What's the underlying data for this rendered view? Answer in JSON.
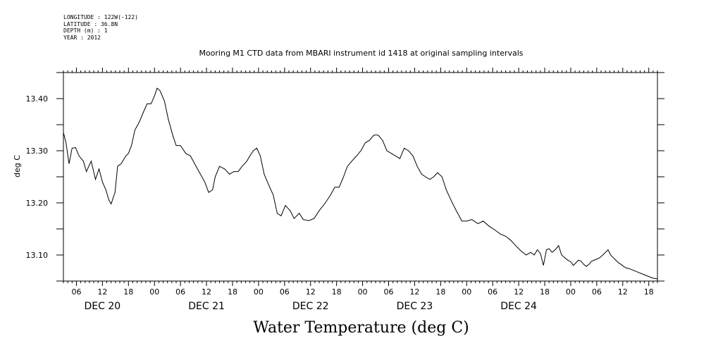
{
  "meta": {
    "longitude": "LONGITUDE : 122W(-122)",
    "latitude": "LATITUDE : 36.8N",
    "depth": "DEPTH (m) : 1",
    "year": "YEAR : 2012"
  },
  "chart_data": {
    "type": "line",
    "title": "Mooring M1 CTD data from MBARI instrument id 1418 at original sampling intervals",
    "ylabel": "deg C",
    "footer_label": "Water Temperature (deg C)",
    "xlabel": "",
    "ylim": [
      13.05,
      13.45
    ],
    "xlim_hours": [
      3,
      140
    ],
    "x_unit": "hours after 2012-12-20 00:00",
    "y_ticks": [
      13.1,
      13.2,
      13.3,
      13.4
    ],
    "y_tick_labels": [
      "13.10",
      "13.20",
      "13.30",
      "13.40"
    ],
    "x_ticks": [
      6,
      12,
      18,
      24,
      30,
      36,
      42,
      48,
      54,
      60,
      66,
      72,
      78,
      84,
      90,
      96,
      102,
      108,
      114,
      120,
      126,
      132,
      138
    ],
    "x_tick_labels": [
      "06",
      "12",
      "18",
      "00",
      "06",
      "12",
      "18",
      "00",
      "06",
      "12",
      "18",
      "00",
      "06",
      "12",
      "18",
      "00",
      "06",
      "12",
      "18",
      "00",
      "06",
      "12",
      "18"
    ],
    "day_label_hours": [
      12,
      36,
      60,
      84,
      108
    ],
    "day_labels": [
      "DEC 20",
      "DEC 21",
      "DEC 22",
      "DEC 23",
      "DEC 24"
    ],
    "series": [
      {
        "name": "",
        "x": [
          3.0,
          3.6,
          4.3,
          5.0,
          5.8,
          6.6,
          7.6,
          8.3,
          9.4,
          10.4,
          11.2,
          12.0,
          12.8,
          13.5,
          14.0,
          14.9,
          15.5,
          16.3,
          17.4,
          18.0,
          18.7,
          19.5,
          20.5,
          21.5,
          22.3,
          23.2,
          24.0,
          24.6,
          25.3,
          26.3,
          27.2,
          28.2,
          29.0,
          30.0,
          31.2,
          32.3,
          33.6,
          34.6,
          35.6,
          36.5,
          37.4,
          38.0,
          39.0,
          40.2,
          41.3,
          42.3,
          43.3,
          44.2,
          45.3,
          46.0,
          46.8,
          47.6,
          48.4,
          49.3,
          50.3,
          51.4,
          52.3,
          53.2,
          54.2,
          55.3,
          56.2,
          57.4,
          58.3,
          59.6,
          60.8,
          62.0,
          63.4,
          64.6,
          65.6,
          66.6,
          67.6,
          68.5,
          69.5,
          70.6,
          71.6,
          72.6,
          73.6,
          74.6,
          75.6,
          76.6,
          77.6,
          78.6,
          79.6,
          80.6,
          81.6,
          82.6,
          83.6,
          84.6,
          85.6,
          86.5,
          87.5,
          88.4,
          89.3,
          90.3,
          91.3,
          92.4,
          93.6,
          94.9,
          96.0,
          97.2,
          98.6,
          99.8,
          101.2,
          102.5,
          103.8,
          105.0,
          106.2,
          107.4,
          108.5,
          109.7,
          110.8,
          111.6,
          112.3,
          113.0,
          113.7,
          114.4,
          115.0,
          115.7,
          116.4,
          117.2,
          117.9,
          118.6,
          119.3,
          120.0,
          120.6,
          121.2,
          121.8,
          122.4,
          123.0,
          123.6,
          124.2,
          124.8,
          125.4,
          126.0,
          126.7,
          127.4,
          128.0,
          128.6,
          129.2,
          129.8,
          130.4,
          131.0,
          131.6,
          132.2,
          132.8,
          133.4,
          134.0,
          134.6,
          135.2,
          135.8,
          136.4,
          137.0,
          137.6,
          138.2,
          138.8,
          139.4,
          140.0
        ],
        "values": [
          13.335,
          13.315,
          13.275,
          13.305,
          13.306,
          13.29,
          13.28,
          13.26,
          13.28,
          13.245,
          13.265,
          13.24,
          13.225,
          13.205,
          13.198,
          13.22,
          13.27,
          13.275,
          13.29,
          13.295,
          13.31,
          13.34,
          13.355,
          13.375,
          13.39,
          13.39,
          13.405,
          13.42,
          13.415,
          13.395,
          13.36,
          13.33,
          13.31,
          13.31,
          13.295,
          13.29,
          13.27,
          13.255,
          13.24,
          13.22,
          13.225,
          13.25,
          13.27,
          13.265,
          13.255,
          13.26,
          13.26,
          13.27,
          13.28,
          13.29,
          13.3,
          13.305,
          13.29,
          13.255,
          13.235,
          13.215,
          13.18,
          13.175,
          13.195,
          13.185,
          13.17,
          13.18,
          13.168,
          13.166,
          13.17,
          13.185,
          13.2,
          13.215,
          13.23,
          13.23,
          13.25,
          13.27,
          13.28,
          13.29,
          13.3,
          13.315,
          13.32,
          13.33,
          13.33,
          13.32,
          13.3,
          13.295,
          13.29,
          13.285,
          13.305,
          13.3,
          13.29,
          13.27,
          13.255,
          13.25,
          13.245,
          13.25,
          13.258,
          13.25,
          13.225,
          13.205,
          13.185,
          13.165,
          13.165,
          13.168,
          13.16,
          13.165,
          13.155,
          13.148,
          13.14,
          13.136,
          13.128,
          13.117,
          13.108,
          13.1,
          13.105,
          13.1,
          13.11,
          13.103,
          13.08,
          13.11,
          13.112,
          13.105,
          13.11,
          13.118,
          13.1,
          13.095,
          13.09,
          13.087,
          13.08,
          13.085,
          13.09,
          13.088,
          13.082,
          13.078,
          13.082,
          13.088,
          13.09,
          13.092,
          13.095,
          13.1,
          13.105,
          13.11,
          13.1,
          13.095,
          13.09,
          13.085,
          13.082,
          13.078,
          13.075,
          13.074,
          13.072,
          13.07,
          13.068,
          13.066,
          13.064,
          13.062,
          13.06,
          13.058,
          13.056,
          13.055,
          13.054
        ]
      }
    ],
    "grid": false,
    "legend": "none"
  }
}
